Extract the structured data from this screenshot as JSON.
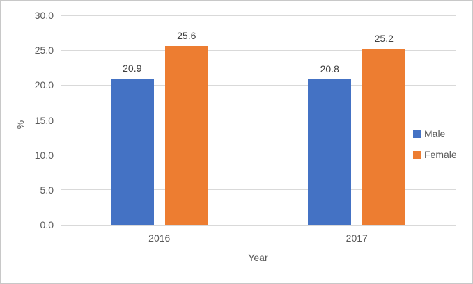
{
  "chart_data": {
    "type": "bar",
    "title": "",
    "categories": [
      "2016",
      "2017"
    ],
    "series": [
      {
        "name": "Male",
        "color": "#4472C4",
        "values": [
          20.9,
          20.8
        ]
      },
      {
        "name": "Female",
        "color": "#ED7D31",
        "values": [
          25.6,
          25.2
        ]
      }
    ],
    "xlabel": "Year",
    "ylabel": "%",
    "ylim": [
      0,
      30
    ],
    "ytick_labels": [
      "0.0",
      "5.0",
      "10.0",
      "15.0",
      "20.0",
      "25.0",
      "30.0"
    ],
    "yticks": [
      0,
      5,
      10,
      15,
      20,
      25,
      30
    ],
    "grid": true,
    "legend_position": "right",
    "data_labels": true
  },
  "colors": {
    "male_bar": "#4472C4",
    "female_bar": "#ED7D31",
    "gridline": "#D9D9D9",
    "axis_text": "#595959",
    "data_label_text": "#404040",
    "chart_border": "#C8C8C8",
    "background": "#FFFFFF"
  }
}
